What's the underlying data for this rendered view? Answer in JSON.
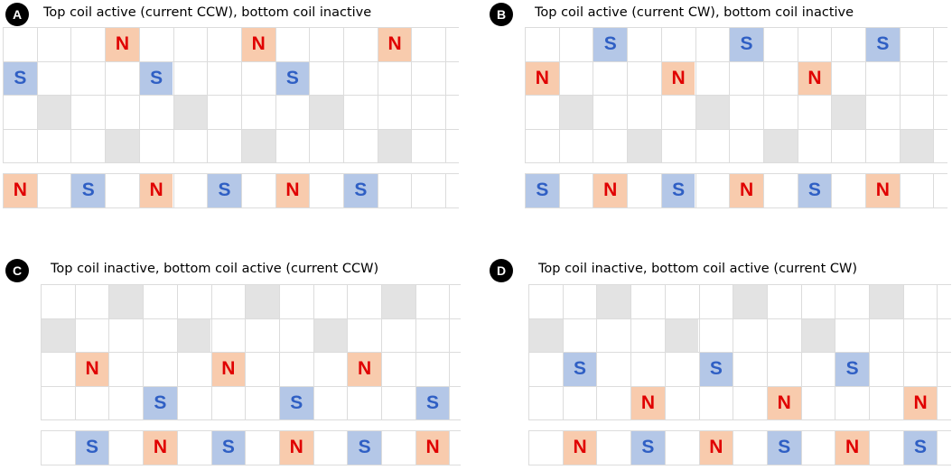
{
  "colors": {
    "north_fill": "#f8cbad",
    "north_text": "#e00000",
    "south_fill": "#b4c7e7",
    "south_text": "#2f5fc4",
    "inactive_fill": "#e3e3e3",
    "grid_line": "#dcdcdc",
    "badge": "#000000"
  },
  "panels": [
    {
      "badge": "A",
      "title": "Top coil active (current CCW), bottom coil inactive",
      "rows": [
        [
          0,
          0,
          0,
          "N",
          0,
          0,
          0,
          "N",
          0,
          0,
          0,
          "N",
          0
        ],
        [
          "S",
          0,
          0,
          0,
          "S",
          0,
          0,
          0,
          "S",
          0,
          0,
          0,
          0
        ],
        [
          0,
          "G",
          0,
          0,
          0,
          "G",
          0,
          0,
          0,
          "G",
          0,
          0,
          0
        ],
        [
          0,
          0,
          0,
          "G",
          0,
          0,
          0,
          "G",
          0,
          0,
          0,
          "G",
          0
        ],
        [
          "N",
          0,
          "S",
          0,
          "N",
          0,
          "S",
          0,
          "N",
          0,
          "S",
          0,
          0
        ]
      ]
    },
    {
      "badge": "B",
      "title": "Top coil active (current CW), bottom coil inactive",
      "rows": [
        [
          0,
          0,
          "S",
          0,
          0,
          0,
          "S",
          0,
          0,
          0,
          "S",
          0
        ],
        [
          "N",
          0,
          0,
          0,
          "N",
          0,
          0,
          0,
          "N",
          0,
          0,
          0
        ],
        [
          0,
          "G",
          0,
          0,
          0,
          "G",
          0,
          0,
          0,
          "G",
          0,
          0
        ],
        [
          0,
          0,
          0,
          "G",
          0,
          0,
          0,
          "G",
          0,
          0,
          0,
          "G"
        ],
        [
          "S",
          0,
          "N",
          0,
          "S",
          0,
          "N",
          0,
          "S",
          0,
          "N",
          0
        ]
      ]
    },
    {
      "badge": "C",
      "title": "Top coil inactive, bottom coil active (current CCW)",
      "rows": [
        [
          0,
          0,
          "G",
          0,
          0,
          0,
          "G",
          0,
          0,
          0,
          "G",
          0
        ],
        [
          "G",
          0,
          0,
          0,
          "G",
          0,
          0,
          0,
          "G",
          0,
          0,
          0
        ],
        [
          0,
          "N",
          0,
          0,
          0,
          "N",
          0,
          0,
          0,
          "N",
          0,
          0
        ],
        [
          0,
          0,
          0,
          "S",
          0,
          0,
          0,
          "S",
          0,
          0,
          0,
          "S"
        ],
        [
          0,
          "S",
          0,
          "N",
          0,
          "S",
          0,
          "N",
          0,
          "S",
          0,
          "N"
        ]
      ]
    },
    {
      "badge": "D",
      "title": "Top coil inactive, bottom coil active (current CW)",
      "rows": [
        [
          0,
          0,
          "G",
          0,
          0,
          0,
          "G",
          0,
          0,
          0,
          "G",
          0
        ],
        [
          "G",
          0,
          0,
          0,
          "G",
          0,
          0,
          0,
          "G",
          0,
          0,
          0
        ],
        [
          0,
          "S",
          0,
          0,
          0,
          "S",
          0,
          0,
          0,
          "S",
          0,
          0
        ],
        [
          0,
          0,
          0,
          "N",
          0,
          0,
          0,
          "N",
          0,
          0,
          0,
          "N"
        ],
        [
          0,
          "N",
          0,
          "S",
          0,
          "N",
          0,
          "S",
          0,
          "N",
          0,
          "S"
        ]
      ]
    }
  ]
}
